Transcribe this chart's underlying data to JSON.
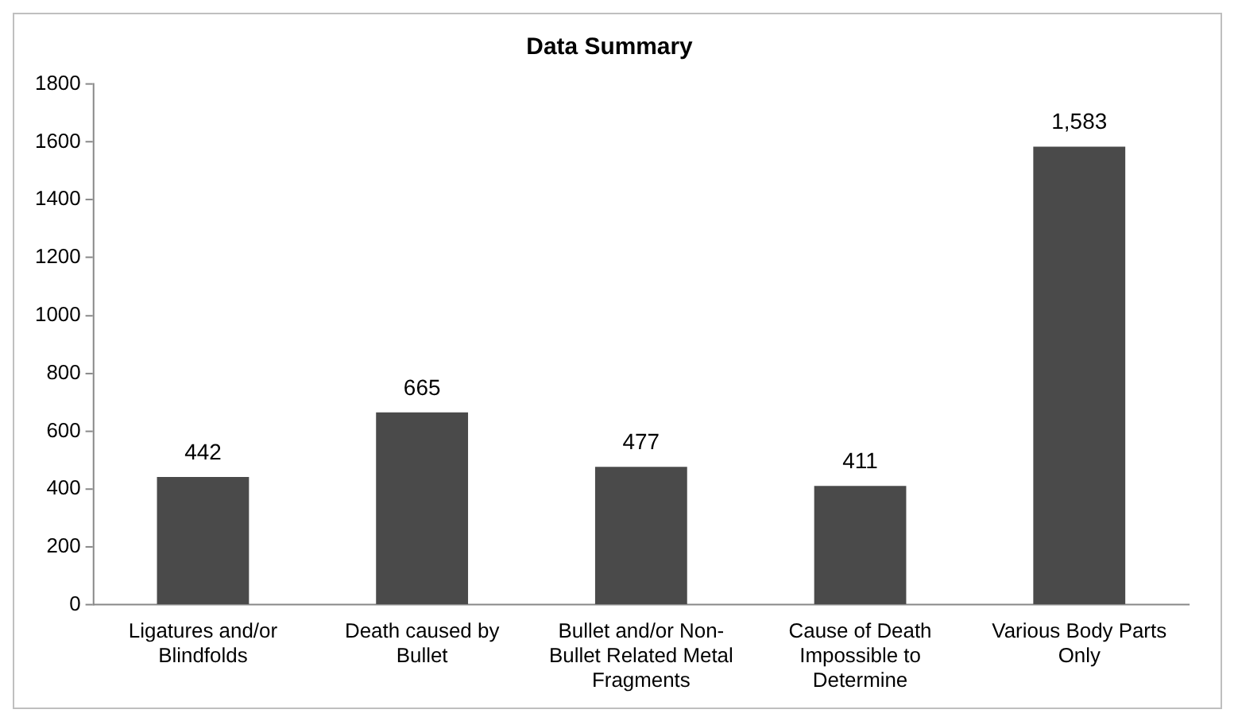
{
  "chart_data": {
    "type": "bar",
    "title": "Data Summary",
    "categories": [
      "Ligatures and/or Blindfolds",
      "Death caused by Bullet",
      "Bullet and/or Non-Bullet Related Metal Fragments",
      "Cause of Death Impossible to Determine",
      "Various Body Parts Only"
    ],
    "values": [
      442,
      665,
      477,
      411,
      1583
    ],
    "color": "#4a4a4a",
    "value_labels": [
      "442",
      "665",
      "477",
      "411",
      "1,583"
    ],
    "ylim": [
      0,
      1800
    ],
    "yticks": [
      0,
      200,
      400,
      600,
      800,
      1000,
      1200,
      1400,
      1600,
      1800
    ],
    "grid": false,
    "legend": false
  }
}
